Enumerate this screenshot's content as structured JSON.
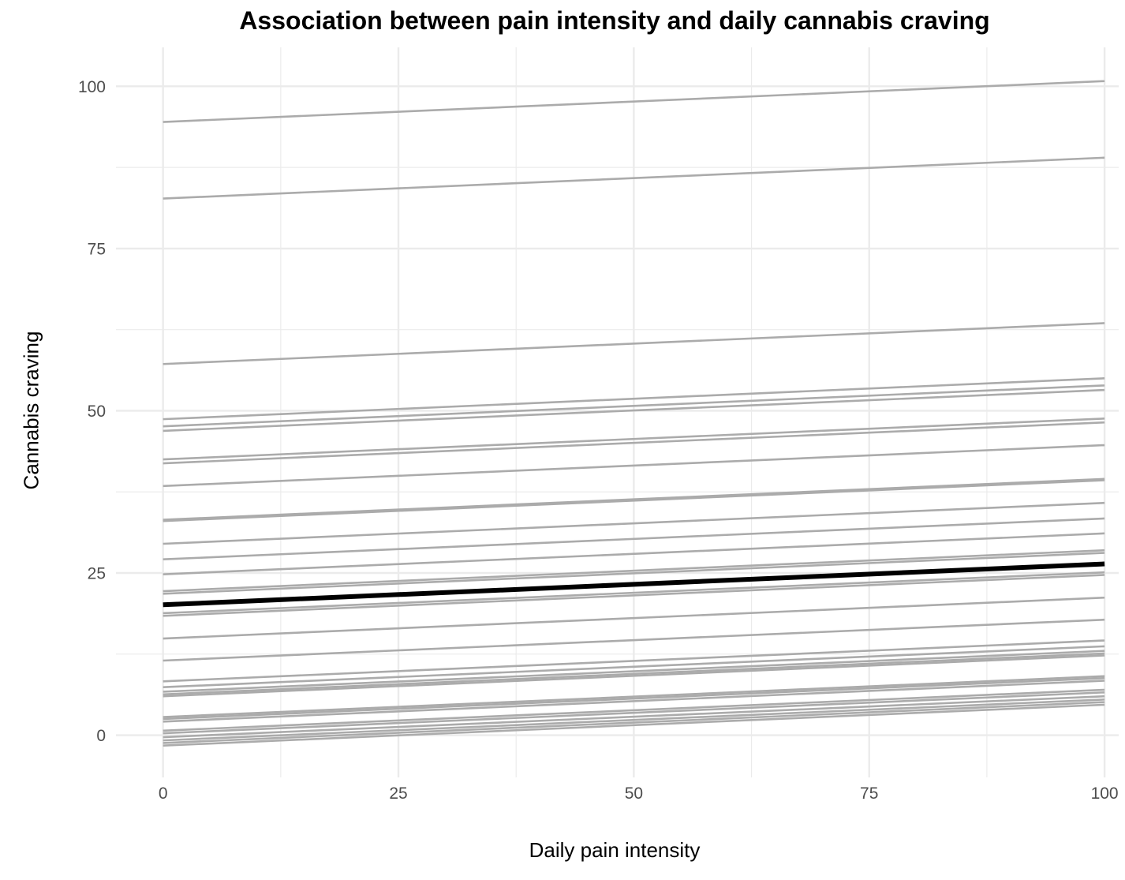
{
  "chart_data": {
    "type": "line",
    "title": "Association between pain intensity and daily cannabis craving",
    "xlabel": "Daily pain intensity",
    "ylabel": "Cannabis craving",
    "xlim": [
      -5,
      101.5
    ],
    "ylim": [
      -6.5,
      106
    ],
    "x_ticks": [
      0,
      25,
      50,
      75,
      100
    ],
    "y_ticks": [
      0,
      25,
      50,
      75,
      100
    ],
    "grid": true,
    "legend": "none",
    "colors": {
      "individual": "#ababab",
      "average": "#000000",
      "grid": "#ebebeb"
    },
    "series": [
      {
        "x": [
          0,
          100
        ],
        "y": [
          94.5,
          100.8
        ]
      },
      {
        "x": [
          0,
          100
        ],
        "y": [
          82.7,
          89.0
        ]
      },
      {
        "x": [
          0,
          100
        ],
        "y": [
          57.2,
          63.5
        ]
      },
      {
        "x": [
          0,
          100
        ],
        "y": [
          48.7,
          55.0
        ]
      },
      {
        "x": [
          0,
          100
        ],
        "y": [
          47.6,
          53.9
        ]
      },
      {
        "x": [
          0,
          100
        ],
        "y": [
          46.9,
          53.2
        ]
      },
      {
        "x": [
          0,
          100
        ],
        "y": [
          42.5,
          48.8
        ]
      },
      {
        "x": [
          0,
          100
        ],
        "y": [
          41.9,
          48.2
        ]
      },
      {
        "x": [
          0,
          100
        ],
        "y": [
          38.4,
          44.7
        ]
      },
      {
        "x": [
          0,
          100
        ],
        "y": [
          33.2,
          39.5
        ]
      },
      {
        "x": [
          0,
          100
        ],
        "y": [
          33.0,
          39.3
        ]
      },
      {
        "x": [
          0,
          100
        ],
        "y": [
          29.5,
          35.8
        ]
      },
      {
        "x": [
          0,
          100
        ],
        "y": [
          27.1,
          33.4
        ]
      },
      {
        "x": [
          0,
          100
        ],
        "y": [
          24.8,
          31.1
        ]
      },
      {
        "x": [
          0,
          100
        ],
        "y": [
          22.2,
          28.5
        ]
      },
      {
        "x": [
          0,
          100
        ],
        "y": [
          21.8,
          28.1
        ]
      },
      {
        "x": [
          0,
          100
        ],
        "y": [
          18.8,
          25.1
        ]
      },
      {
        "x": [
          0,
          100
        ],
        "y": [
          18.4,
          24.7
        ]
      },
      {
        "x": [
          0,
          100
        ],
        "y": [
          14.9,
          21.2
        ]
      },
      {
        "x": [
          0,
          100
        ],
        "y": [
          11.5,
          17.8
        ]
      },
      {
        "x": [
          0,
          100
        ],
        "y": [
          8.3,
          14.6
        ]
      },
      {
        "x": [
          0,
          100
        ],
        "y": [
          7.4,
          13.7
        ]
      },
      {
        "x": [
          0,
          100
        ],
        "y": [
          6.7,
          13.0
        ]
      },
      {
        "x": [
          0,
          100
        ],
        "y": [
          6.3,
          12.6
        ]
      },
      {
        "x": [
          0,
          100
        ],
        "y": [
          6.0,
          12.3
        ]
      },
      {
        "x": [
          0,
          100
        ],
        "y": [
          2.8,
          9.1
        ]
      },
      {
        "x": [
          0,
          100
        ],
        "y": [
          2.5,
          8.8
        ]
      },
      {
        "x": [
          0,
          100
        ],
        "y": [
          2.1,
          8.4
        ]
      },
      {
        "x": [
          0,
          100
        ],
        "y": [
          0.7,
          7.0
        ]
      },
      {
        "x": [
          0,
          100
        ],
        "y": [
          0.3,
          6.6
        ]
      },
      {
        "x": [
          0,
          100
        ],
        "y": [
          -0.3,
          6.0
        ]
      },
      {
        "x": [
          0,
          100
        ],
        "y": [
          -0.8,
          5.5
        ]
      },
      {
        "x": [
          0,
          100
        ],
        "y": [
          -1.2,
          5.1
        ]
      },
      {
        "x": [
          0,
          100
        ],
        "y": [
          -1.6,
          4.7
        ]
      }
    ],
    "average": {
      "x": [
        0,
        100
      ],
      "y": [
        20.1,
        26.4
      ]
    }
  }
}
